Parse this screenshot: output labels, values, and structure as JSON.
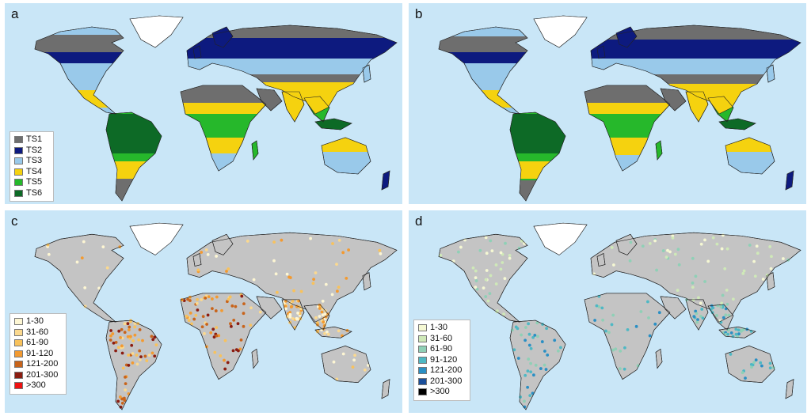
{
  "panels": [
    {
      "label": "a",
      "type": "classes",
      "legend": [
        {
          "label": "TS1",
          "color": "#6e6e6e"
        },
        {
          "label": "TS2",
          "color": "#0d1a7f"
        },
        {
          "label": "TS3",
          "color": "#99c9ea"
        },
        {
          "label": "TS4",
          "color": "#f5d20f"
        },
        {
          "label": "TS5",
          "color": "#26b82b"
        },
        {
          "label": "TS6",
          "color": "#0d6a26"
        }
      ]
    },
    {
      "label": "b",
      "type": "classes",
      "legend": []
    },
    {
      "label": "c",
      "type": "points",
      "legend": [
        {
          "label": "1-30",
          "color": "#fdf6d3"
        },
        {
          "label": "31-60",
          "color": "#fbd98f"
        },
        {
          "label": "61-90",
          "color": "#f8c25c"
        },
        {
          "label": "91-120",
          "color": "#f39a30"
        },
        {
          "label": "121-200",
          "color": "#c8641b"
        },
        {
          "label": "201-300",
          "color": "#8b1c10"
        },
        {
          "label": ">300",
          "color": "#ee1111"
        }
      ]
    },
    {
      "label": "d",
      "type": "points",
      "legend": [
        {
          "label": "1-30",
          "color": "#f5f8d3"
        },
        {
          "label": "31-60",
          "color": "#cfe9b8"
        },
        {
          "label": "61-90",
          "color": "#8fd0b6"
        },
        {
          "label": "91-120",
          "color": "#4eb8c4"
        },
        {
          "label": "121-200",
          "color": "#2a8fc4"
        },
        {
          "label": "201-300",
          "color": "#1b4f9b"
        },
        {
          "label": ">300",
          "color": "#000000"
        }
      ]
    }
  ],
  "colors": {
    "ocean": "#c9e6f7",
    "land_gray": "#c4c4c4",
    "ice": "#ffffff",
    "border": "#222222"
  }
}
